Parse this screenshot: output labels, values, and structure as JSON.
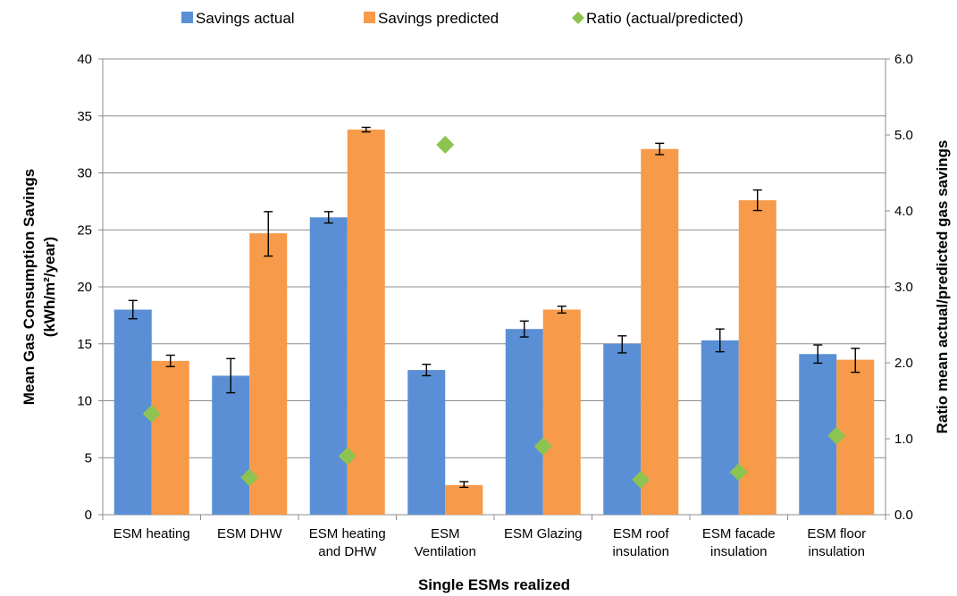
{
  "chart_data": {
    "type": "bar",
    "title": "",
    "categories": [
      [
        "ESM heating"
      ],
      [
        "ESM DHW"
      ],
      [
        "ESM heating",
        "and DHW"
      ],
      [
        "ESM",
        "Ventilation"
      ],
      [
        "ESM Glazing"
      ],
      [
        "ESM roof",
        "insulation"
      ],
      [
        "ESM facade",
        "insulation"
      ],
      [
        "ESM floor",
        "insulation"
      ]
    ],
    "xlabel": "Single ESMs realized",
    "ylabel_lines": [
      "Mean Gas Consumption Savings",
      "(kWh/m²/year)"
    ],
    "y2label": "Ratio mean actual/predicted gas savings",
    "ylim": [
      0,
      40
    ],
    "yticks": [
      0,
      5,
      10,
      15,
      20,
      25,
      30,
      35,
      40
    ],
    "y2lim": [
      0,
      6
    ],
    "y2ticks": [
      "0.0",
      "1.0",
      "2.0",
      "3.0",
      "4.0",
      "5.0",
      "6.0"
    ],
    "grid": true,
    "legend_position": "top",
    "series": [
      {
        "name": "Savings actual",
        "kind": "bar",
        "axis": "left",
        "color": "#5b8fd5",
        "values": [
          18.0,
          12.2,
          26.1,
          12.7,
          16.3,
          15.0,
          15.3,
          14.1
        ],
        "error_low": [
          17.2,
          10.7,
          25.6,
          12.2,
          15.6,
          14.2,
          14.3,
          13.3
        ],
        "error_high": [
          18.8,
          13.7,
          26.6,
          13.2,
          17.0,
          15.7,
          16.3,
          14.9
        ]
      },
      {
        "name": "Savings predicted",
        "kind": "bar",
        "axis": "left",
        "color": "#f79a4a",
        "values": [
          13.5,
          24.7,
          33.8,
          2.6,
          18.0,
          32.1,
          27.6,
          13.6
        ],
        "error_low": [
          13.0,
          22.7,
          33.6,
          2.4,
          17.7,
          31.6,
          26.7,
          12.5
        ],
        "error_high": [
          14.0,
          26.6,
          34.0,
          2.9,
          18.3,
          32.6,
          28.5,
          14.6
        ]
      },
      {
        "name": "Ratio (actual/predicted)",
        "kind": "marker",
        "axis": "right",
        "color": "#8dc451",
        "values": [
          1.33,
          0.49,
          0.77,
          4.87,
          0.9,
          0.46,
          0.56,
          1.04
        ]
      }
    ]
  }
}
